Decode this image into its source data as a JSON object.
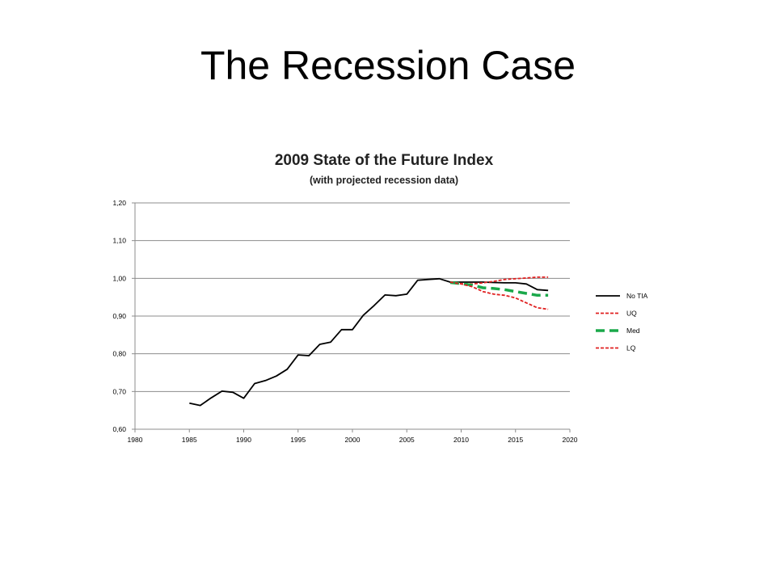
{
  "slide": {
    "title": "The Recession Case"
  },
  "chart_data": {
    "type": "line",
    "title": "2009 State of the Future Index",
    "subtitle": "(with projected recession data)",
    "xlabel": "",
    "ylabel": "",
    "xlim": [
      1980,
      2020
    ],
    "ylim": [
      0.6,
      1.2
    ],
    "x_ticks": [
      "1980",
      "1985",
      "1990",
      "1995",
      "2000",
      "2005",
      "2010",
      "2015",
      "2020"
    ],
    "y_ticks": [
      "0,60",
      "0,70",
      "0,80",
      "0,90",
      "1,00",
      "1,10",
      "1,20"
    ],
    "grid": "horizontal",
    "legend_position": "right",
    "series": [
      {
        "name": "No TIA",
        "color": "#000000",
        "style": "solid",
        "x": [
          1985,
          1986,
          1987,
          1988,
          1989,
          1990,
          1991,
          1992,
          1993,
          1994,
          1995,
          1996,
          1997,
          1998,
          1999,
          2000,
          2001,
          2002,
          2003,
          2004,
          2005,
          2006,
          2007,
          2008,
          2009,
          2010,
          2011,
          2012,
          2013,
          2014,
          2015,
          2016,
          2017,
          2018
        ],
        "y": [
          0.669,
          0.663,
          0.683,
          0.701,
          0.698,
          0.682,
          0.721,
          0.729,
          0.741,
          0.759,
          0.797,
          0.795,
          0.825,
          0.831,
          0.864,
          0.864,
          0.902,
          0.928,
          0.956,
          0.954,
          0.958,
          0.995,
          0.997,
          0.999,
          0.99,
          0.99,
          0.99,
          0.99,
          0.989,
          0.988,
          0.988,
          0.985,
          0.97,
          0.968
        ]
      },
      {
        "name": "UQ",
        "color": "#e02020",
        "style": "dotted",
        "x": [
          2009,
          2010,
          2011,
          2012,
          2013,
          2014,
          2015,
          2016,
          2017,
          2018
        ],
        "y": [
          0.988,
          0.986,
          0.985,
          0.988,
          0.992,
          0.997,
          0.999,
          1.001,
          1.003,
          1.003
        ]
      },
      {
        "name": "Med",
        "color": "#1aa84a",
        "style": "dashed",
        "x": [
          2009,
          2010,
          2011,
          2012,
          2013,
          2014,
          2015,
          2016,
          2017,
          2018
        ],
        "y": [
          0.989,
          0.986,
          0.982,
          0.975,
          0.973,
          0.97,
          0.965,
          0.96,
          0.955,
          0.955
        ]
      },
      {
        "name": "LQ",
        "color": "#e02020",
        "style": "dotted",
        "x": [
          2009,
          2010,
          2011,
          2012,
          2013,
          2014,
          2015,
          2016,
          2017,
          2018
        ],
        "y": [
          0.99,
          0.985,
          0.978,
          0.965,
          0.958,
          0.955,
          0.948,
          0.935,
          0.922,
          0.918
        ]
      }
    ]
  }
}
